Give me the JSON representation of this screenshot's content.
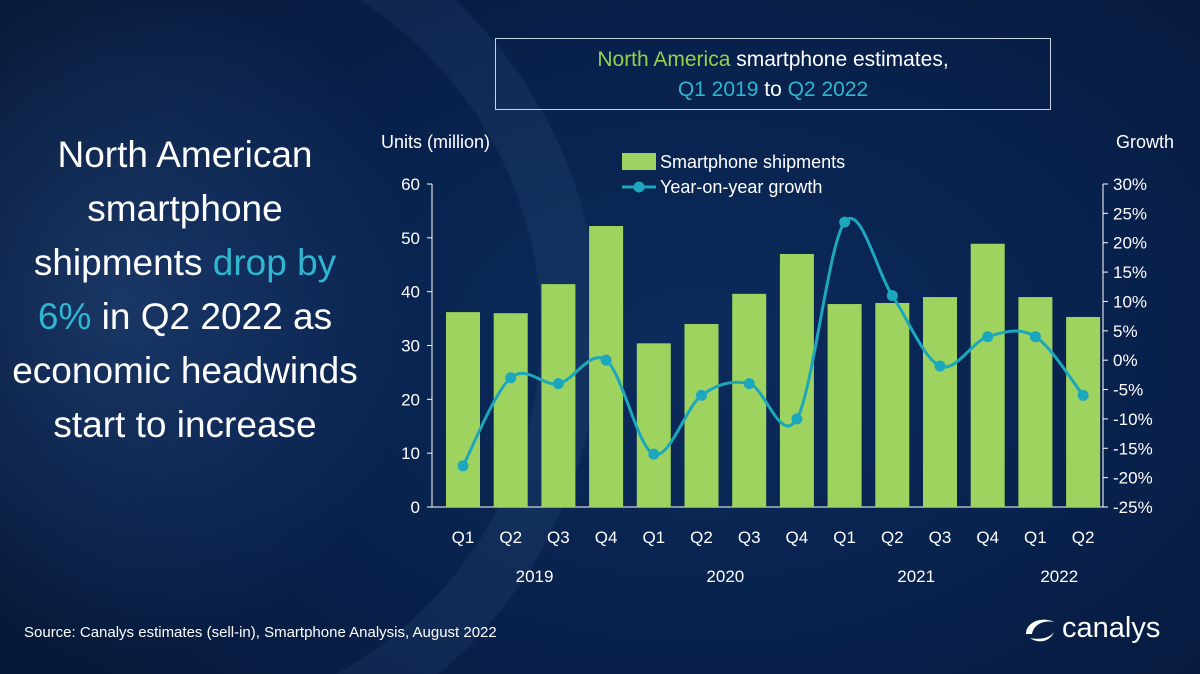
{
  "headline": {
    "part1": "North American smartphone shipments ",
    "highlight": "drop by 6%",
    "part2": " in Q2 2022 as economic headwinds start to increase"
  },
  "title": {
    "region": "North America",
    "mid": " smartphone estimates,",
    "start": "Q1 2019",
    "to": " to ",
    "end": "Q2 2022"
  },
  "source": "Source: Canalys estimates (sell-in), Smartphone Analysis, August 2022",
  "logo": "canalys",
  "colors": {
    "bars": "#9fd35f",
    "line": "#1ca7bd",
    "highlight": "#2fb6d0",
    "title_green": "#92d050"
  },
  "chart_data": {
    "type": "bar+line",
    "ylabel": "Units (million)",
    "y2label": "Growth",
    "ylim": [
      0,
      60
    ],
    "yticks": [
      "0",
      "10",
      "20",
      "30",
      "40",
      "50",
      "60"
    ],
    "y2lim": [
      -25,
      30
    ],
    "y2ticks": [
      "-25%",
      "-20%",
      "-15%",
      "-10%",
      "-5%",
      "0%",
      "5%",
      "10%",
      "15%",
      "20%",
      "25%",
      "30%"
    ],
    "categories": [
      "Q1",
      "Q2",
      "Q3",
      "Q4",
      "Q1",
      "Q2",
      "Q3",
      "Q4",
      "Q1",
      "Q2",
      "Q3",
      "Q4",
      "Q1",
      "Q2"
    ],
    "years": [
      {
        "label": "2019",
        "span": 4
      },
      {
        "label": "2020",
        "span": 4
      },
      {
        "label": "2021",
        "span": 4
      },
      {
        "label": "2022",
        "span": 2
      }
    ],
    "series": [
      {
        "name": "Smartphone shipments",
        "type": "bar",
        "values": [
          36.2,
          36.0,
          41.4,
          52.2,
          30.4,
          34.0,
          39.6,
          47.0,
          37.7,
          37.9,
          39.0,
          48.9,
          39.0,
          35.3
        ]
      },
      {
        "name": "Year-on-year growth",
        "type": "line",
        "axis": "right",
        "unit": "%",
        "values": [
          -18,
          -3,
          -4,
          0,
          -16,
          -6,
          -4,
          -10,
          23.5,
          11,
          -1,
          4,
          4,
          -6
        ]
      }
    ],
    "legend": "top-center",
    "grid": false
  }
}
